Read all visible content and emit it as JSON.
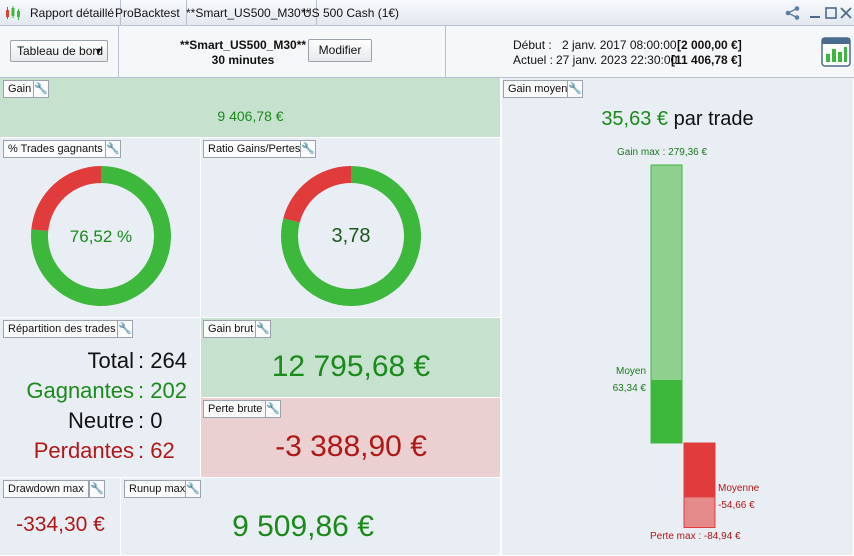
{
  "titlebar": {
    "tabs": [
      "Rapport détaillé",
      "ProBacktest",
      "**Smart_US500_M30**",
      "US 500 Cash (1€)"
    ],
    "controls": [
      "share-icon",
      "minimize-icon",
      "maximize-icon",
      "close-icon"
    ]
  },
  "header": {
    "dashboard_select": "Tableau de bord",
    "strategy_name": "**Smart_US500_M30**",
    "timeframe": "30 minutes",
    "modify_label": "Modifier",
    "debut_label": "Début :",
    "debut_date": "2 janv. 2017 08:00:00",
    "debut_value": "[2 000,00 €]",
    "actuel_label": "Actuel :",
    "actuel_date": "27 janv. 2023 22:30:00",
    "actuel_value": "[11 406,78 €]"
  },
  "gain": {
    "label": "Gain",
    "value": "9 406,78 €"
  },
  "win_pct": {
    "label": "% Trades gagnants",
    "value_text": "76,52 %",
    "fraction": 0.7652
  },
  "ratio": {
    "label": "Ratio Gains/Pertes",
    "value_text": "3,78",
    "fraction": 0.7908
  },
  "repartition": {
    "label": "Répartition des trades",
    "total_label": "Total",
    "total": "264",
    "win_label": "Gagnantes",
    "win": "202",
    "neutral_label": "Neutre",
    "neutral": "0",
    "loss_label": "Perdantes",
    "loss": "62"
  },
  "gain_brut": {
    "label": "Gain brut",
    "value": "12 795,68 €"
  },
  "perte_brute": {
    "label": "Perte brute",
    "value": "-3 388,90 €"
  },
  "drawdown": {
    "label": "Drawdown max",
    "value": "-334,30 €"
  },
  "runup": {
    "label": "Runup max",
    "value": "9 509,86 €"
  },
  "gain_moyen": {
    "label": "Gain moyen",
    "value": "35,63 €",
    "suffix": "par trade",
    "gain_max_text": "Gain max : 279,36 €",
    "moyen_label": "Moyen",
    "moyen_value": "63,34 €",
    "moyenne_label": "Moyenne",
    "moyenne_value": "-54,66 €",
    "perte_max_text": "Perte max : -84,94 €",
    "gain_max": 279.36,
    "gain_avg": 63.34,
    "loss_avg": -54.66,
    "loss_max": -84.94
  },
  "colors": {
    "win": "#3db83d",
    "loss": "#e03c3c",
    "win_light": "#8fd08f",
    "loss_light": "#e58a8a"
  }
}
